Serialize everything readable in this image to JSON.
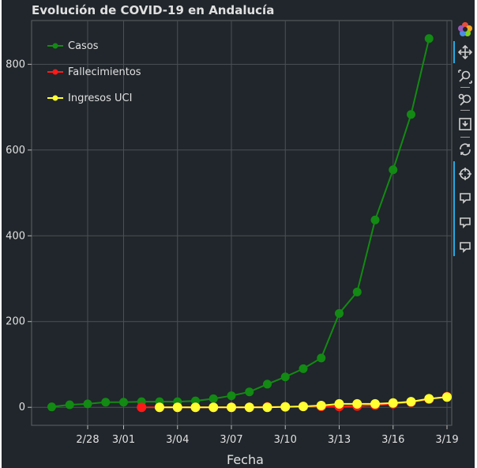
{
  "chart_data": {
    "type": "line",
    "title": "Evolución de COVID-19 en Andalucía",
    "xlabel": "Fecha",
    "ylabel": "",
    "x_dates": [
      "2/26",
      "2/27",
      "2/28",
      "2/29",
      "3/01",
      "3/02",
      "3/03",
      "3/04",
      "3/05",
      "3/06",
      "3/07",
      "3/08",
      "3/09",
      "3/10",
      "3/11",
      "3/12",
      "3/13",
      "3/14",
      "3/15",
      "3/16",
      "3/17",
      "3/18",
      "3/19"
    ],
    "x_ticks": [
      "2/28",
      "3/01",
      "3/04",
      "3/07",
      "3/10",
      "3/13",
      "3/16",
      "3/19"
    ],
    "y_ticks": [
      0,
      200,
      400,
      600,
      800
    ],
    "ylim": [
      -42,
      902
    ],
    "series": [
      {
        "name": "Casos",
        "color": "#138a13",
        "values": [
          1,
          6,
          8,
          12,
          12,
          13,
          13,
          13,
          15,
          20,
          27,
          36,
          54,
          71,
          90,
          115,
          219,
          269,
          437,
          554,
          683,
          860,
          null
        ]
      },
      {
        "name": "Fallecimientos",
        "color": "#ff1a1a",
        "values": [
          null,
          null,
          null,
          null,
          null,
          0,
          0,
          0,
          0,
          0,
          0,
          0,
          1,
          1,
          2,
          2,
          2,
          3,
          5,
          8,
          12,
          19,
          25
        ]
      },
      {
        "name": "Ingresos UCI",
        "color": "#ffff33",
        "values": [
          null,
          null,
          null,
          null,
          null,
          null,
          0,
          0,
          0,
          0,
          0,
          0,
          0,
          1,
          2,
          4,
          8,
          8,
          8,
          10,
          13,
          20,
          24
        ]
      }
    ],
    "legend_position": "top-left"
  },
  "toolbar": {
    "tools": [
      "bokeh-logo-icon",
      "pan-icon",
      "box-zoom-icon",
      "wheel-zoom-icon",
      "save-icon",
      "reset-icon",
      "crosshair-icon",
      "hover-icon",
      "hover-icon",
      "hover-icon"
    ]
  }
}
